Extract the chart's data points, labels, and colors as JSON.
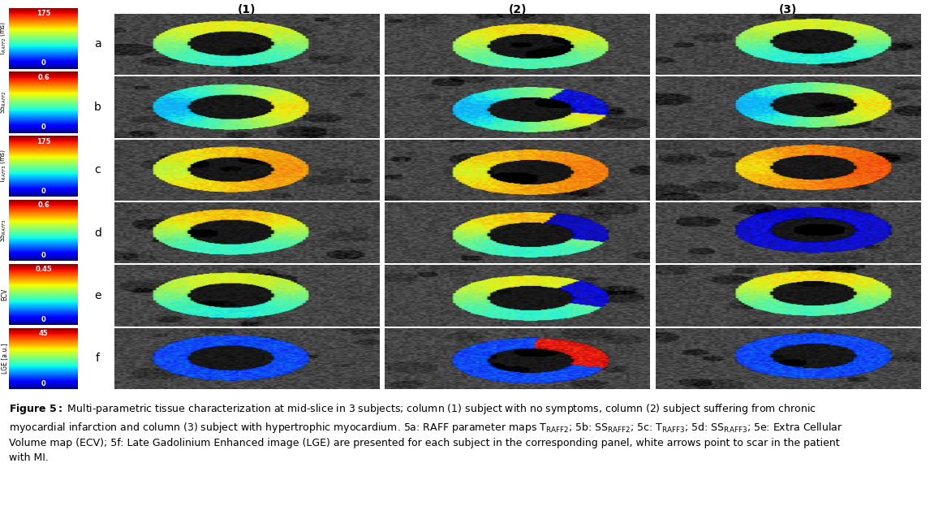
{
  "col_headers": [
    "(1)",
    "(2)",
    "(3)"
  ],
  "row_labels": [
    "a",
    "b",
    "c",
    "d",
    "e",
    "f"
  ],
  "colorbar_info": [
    {
      "top_val": "175",
      "bottom_val": "0",
      "label": "T$_{RAFF2}$ (ms)",
      "cmap": "jet"
    },
    {
      "top_val": "0.6",
      "bottom_val": "0",
      "label": "SS$_{RAFF2}$",
      "cmap": "jet"
    },
    {
      "top_val": "175",
      "bottom_val": "0",
      "label": "T$_{RAFF3}$ (ms)",
      "cmap": "jet"
    },
    {
      "top_val": "0.6",
      "bottom_val": "0",
      "label": "SS$_{RAFF3}$",
      "cmap": "jet"
    },
    {
      "top_val": "0.45",
      "bottom_val": "0",
      "label": "ECV",
      "cmap": "jet"
    },
    {
      "top_val": "45",
      "bottom_val": "0",
      "label": "LGE [a.u.]",
      "cmap": "jet"
    }
  ],
  "caption_bold": "Figure 5:",
  "caption_rest": " Multi-parametric tissue characterization at mid-slice in 3 subjects; column (1) subject with no symptoms, column (2) subject suffering from chronic myocardial infarction and column (3) subject with hypertrophic myocardium. 5a: RAFF parameter maps T$_{\\mathrm{RAFF2}}$; 5b: SS$_{\\mathrm{RAFF2}}$; 5c: T$_{\\mathrm{RAFF3}}$; 5d: SS$_{\\mathrm{RAFF3}}$; 5e: Extra Cellular Volume map (ECV); 5f: Late Gadolinium Enhanced image (LGE) are presented for each subject in the corresponding panel, white arrows point to scar in the patient with MI.",
  "bg_color": "#ffffff",
  "text_color": "#000000",
  "caption_fontsize": 9.0
}
